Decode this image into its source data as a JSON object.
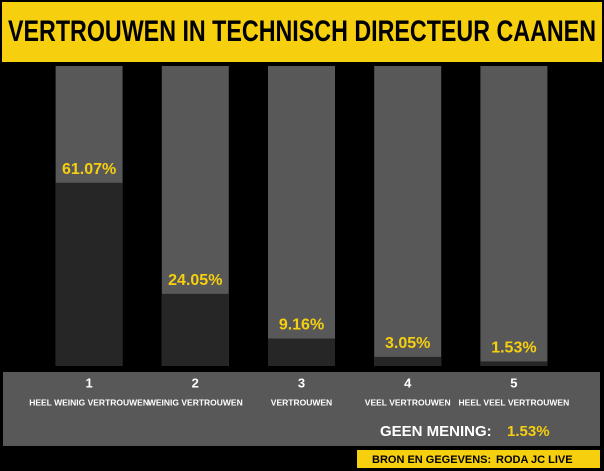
{
  "chart_data": {
    "type": "bar",
    "title": "VERTROUWEN IN TECHNISCH DIRECTEUR CAANEN",
    "category_numbers": [
      "1",
      "2",
      "3",
      "4",
      "5"
    ],
    "categories": [
      "HEEL WEINIG VERTROUWEN",
      "WEINIG VERTROUWEN",
      "VERTROUWEN",
      "VEEL VERTROUWEN",
      "HEEL VEEL VERTROUWEN"
    ],
    "values": [
      61.07,
      24.05,
      9.16,
      3.05,
      1.53
    ],
    "value_labels": [
      "61.07%",
      "24.05%",
      "9.16%",
      "3.05%",
      "1.53%"
    ],
    "ylim": [
      0,
      100
    ],
    "color": "#262626",
    "background_color": "#585858",
    "label_color": "#f6cf0f",
    "geen_mening": {
      "label": "GEEN MENING:",
      "value": 1.53,
      "value_label": "1.53%"
    },
    "source": {
      "label": "BRON EN GEGEVENS:",
      "name": "RODA JC LIVE"
    }
  }
}
